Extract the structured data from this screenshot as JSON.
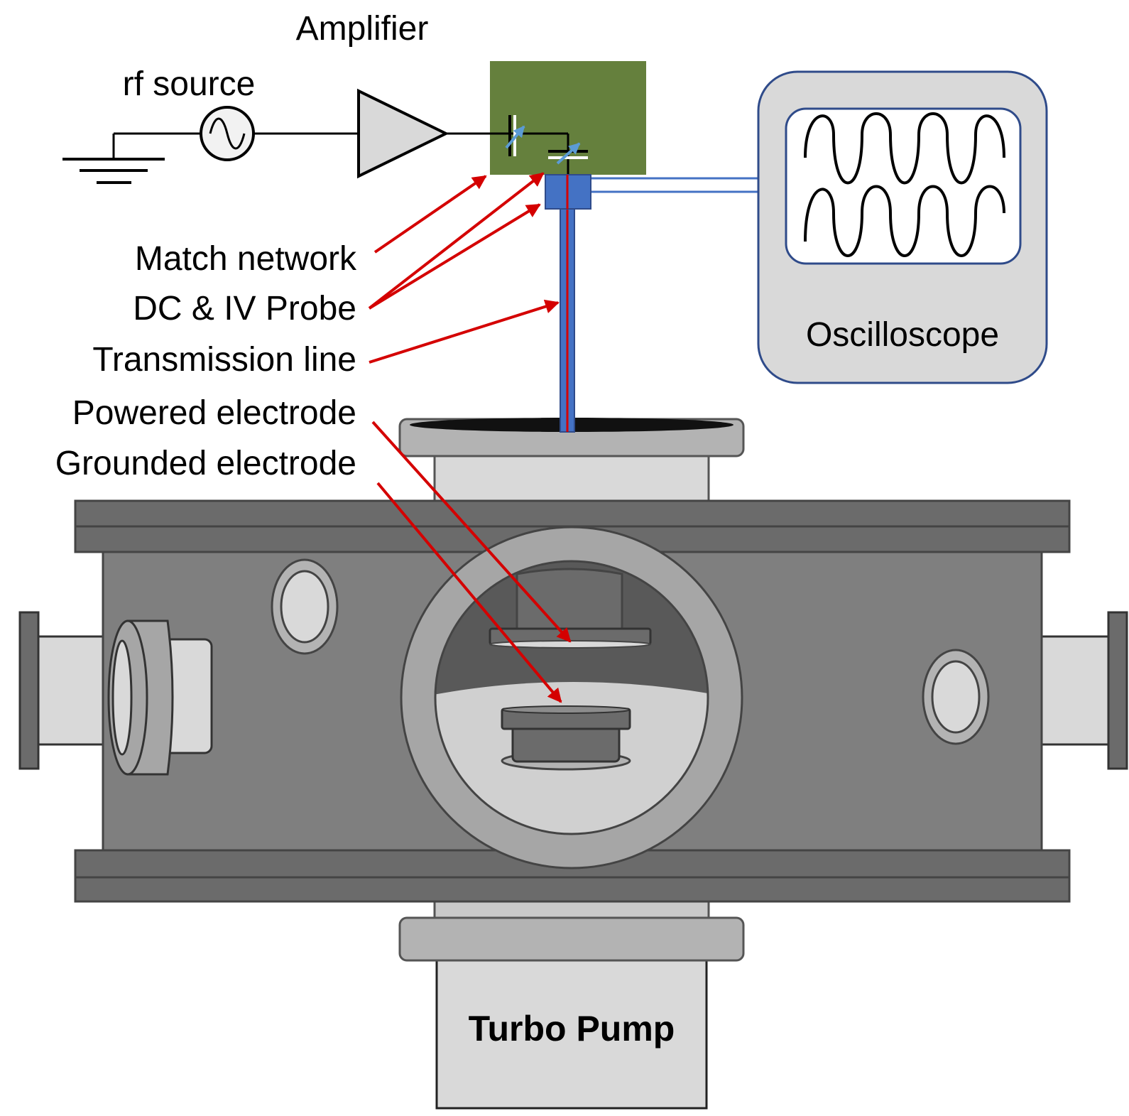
{
  "labels": {
    "amplifier": "Amplifier",
    "rf_source": "rf source",
    "match_network": "Match network",
    "dc_iv_probe": "DC & IV Probe",
    "transmission_line": "Transmission line",
    "powered_electrode": "Powered electrode",
    "grounded_electrode": "Grounded electrode",
    "oscilloscope": "Oscilloscope",
    "turbo_pump": "Turbo Pump"
  },
  "colors": {
    "annotation_arrow": "#d40000",
    "match_network_box": "#65803d",
    "cable": "#4472c4",
    "chamber_body": "#7f7f7f",
    "chamber_flange": "#6b6b6b",
    "port_light": "#d9d9d9",
    "oscilloscope_fill": "#d9d9d9",
    "oscilloscope_border": "#2f4b8a"
  }
}
